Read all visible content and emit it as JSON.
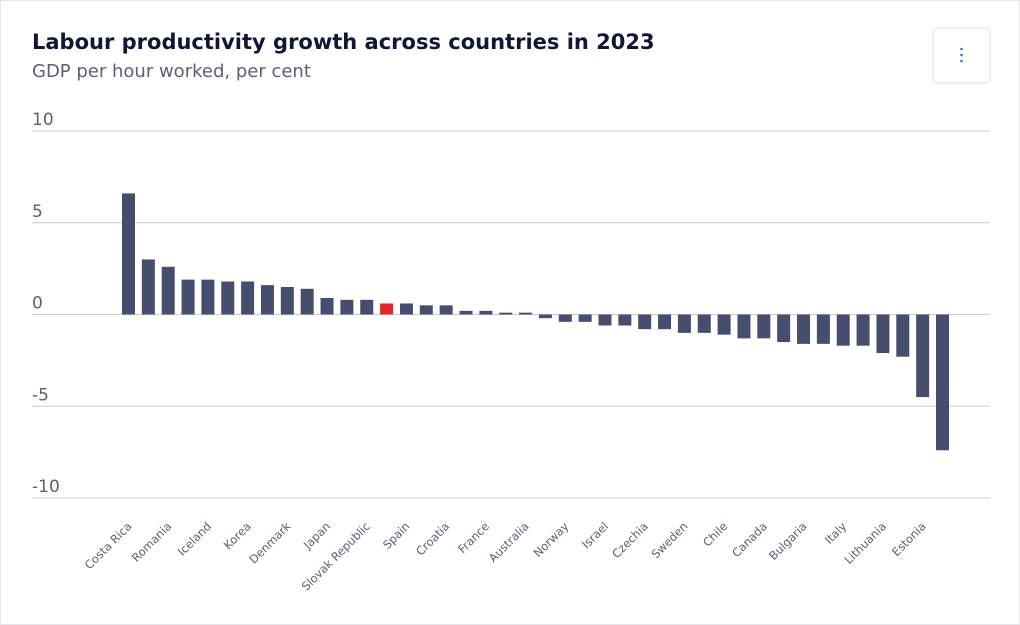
{
  "chart_data": {
    "type": "bar",
    "title": "Labour productivity growth across countries in 2023",
    "subtitle": "GDP per hour worked, per cent",
    "categories": [
      "Costa Rica",
      null,
      "Romania",
      null,
      "Iceland",
      null,
      "Korea",
      null,
      "Denmark",
      null,
      "Japan",
      null,
      "Slovak Republic",
      null,
      "Spain",
      null,
      "Croatia",
      null,
      "France",
      null,
      "Australia",
      null,
      "Norway",
      null,
      "Israel",
      null,
      "Czechia",
      null,
      "Sweden",
      null,
      "Chile",
      null,
      "Canada",
      null,
      "Bulgaria",
      null,
      "Italy",
      null,
      "Lithuania",
      null,
      "Estonia",
      null
    ],
    "values": [
      6.6,
      3.0,
      2.6,
      1.9,
      1.9,
      1.8,
      1.8,
      1.6,
      1.5,
      1.4,
      0.9,
      0.8,
      0.8,
      0.6,
      0.6,
      0.5,
      0.5,
      0.2,
      0.2,
      0.1,
      0.1,
      -0.2,
      -0.4,
      -0.4,
      -0.6,
      -0.6,
      -0.8,
      -0.8,
      -1.0,
      -1.0,
      -1.1,
      -1.3,
      -1.3,
      -1.5,
      -1.6,
      -1.6,
      -1.7,
      -1.7,
      -2.1,
      -2.3,
      -4.5,
      -7.4
    ],
    "colors": [
      "#464e6e",
      "#464e6e",
      "#464e6e",
      "#464e6e",
      "#464e6e",
      "#464e6e",
      "#464e6e",
      "#464e6e",
      "#464e6e",
      "#464e6e",
      "#464e6e",
      "#464e6e",
      "#464e6e",
      "#e3242b",
      "#464e6e",
      "#464e6e",
      "#464e6e",
      "#464e6e",
      "#464e6e",
      "#464e6e",
      "#464e6e",
      "#464e6e",
      "#464e6e",
      "#464e6e",
      "#464e6e",
      "#464e6e",
      "#464e6e",
      "#464e6e",
      "#464e6e",
      "#464e6e",
      "#464e6e",
      "#464e6e",
      "#464e6e",
      "#464e6e",
      "#464e6e",
      "#464e6e",
      "#464e6e",
      "#464e6e",
      "#464e6e",
      "#464e6e",
      "#464e6e",
      "#464e6e"
    ],
    "ylim": [
      -10,
      10
    ],
    "yticks": [
      -10,
      -5,
      0,
      5,
      10
    ],
    "grid": true
  }
}
